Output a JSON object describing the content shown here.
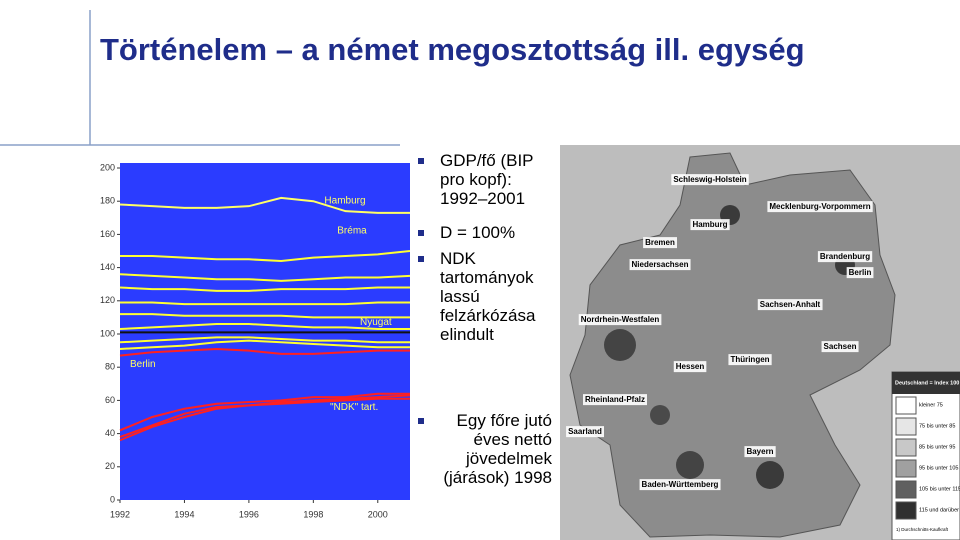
{
  "title": "Történelem – a német megosztottság ill. egység",
  "bullets": [
    "GDP/fő (BIP pro kopf): 1992–2001",
    "D = 100%",
    "NDK tartományok lassú felzárkózása elindult",
    "Egy főre jutó éves nettó jövedelmek (járások) 1998"
  ],
  "chart_data": {
    "type": "line",
    "x": [
      1992,
      1993,
      1994,
      1995,
      1996,
      1997,
      1998,
      1999,
      2000,
      2001
    ],
    "xlim": [
      1992,
      2001
    ],
    "xticks": [
      1992,
      1994,
      1996,
      1998,
      2000
    ],
    "ylim": [
      0,
      200
    ],
    "yticks": [
      0,
      20,
      40,
      60,
      80,
      100,
      120,
      140,
      160,
      180,
      200
    ],
    "series": [
      {
        "name": "Hamburg",
        "color": "#ffff66",
        "values": [
          178,
          177,
          176,
          176,
          177,
          182,
          180,
          174,
          173,
          173
        ]
      },
      {
        "name": "Bréma",
        "color": "#ffff33",
        "values": [
          147,
          147,
          146,
          145,
          145,
          144,
          146,
          147,
          148,
          150
        ]
      },
      {
        "color": "#ffff33",
        "values": [
          136,
          135,
          134,
          133,
          133,
          132,
          133,
          134,
          134,
          135
        ]
      },
      {
        "color": "#ffff33",
        "values": [
          128,
          127,
          127,
          126,
          126,
          127,
          127,
          127,
          128,
          128
        ]
      },
      {
        "color": "#ffff33",
        "values": [
          119,
          119,
          118,
          118,
          118,
          118,
          118,
          118,
          119,
          119
        ]
      },
      {
        "color": "#ffff33",
        "values": [
          112,
          112,
          111,
          111,
          111,
          111,
          110,
          110,
          110,
          110
        ]
      },
      {
        "name": "Nyugat",
        "color": "#111111",
        "values": [
          101,
          101,
          101,
          101,
          101,
          101,
          101,
          101,
          101,
          101
        ]
      },
      {
        "color": "#ffff33",
        "values": [
          103,
          104,
          105,
          106,
          106,
          105,
          104,
          104,
          103,
          103
        ]
      },
      {
        "color": "#ffff33",
        "values": [
          95,
          96,
          97,
          98,
          98,
          97,
          96,
          96,
          95,
          95
        ]
      },
      {
        "color": "#ffff33",
        "values": [
          91,
          92,
          93,
          95,
          96,
          95,
          94,
          93,
          92,
          92
        ]
      },
      {
        "name": "Berlin",
        "color": "#ff2020",
        "values": [
          87,
          89,
          90,
          91,
          90,
          88,
          88,
          89,
          90,
          90
        ]
      },
      {
        "name": "\"NDK\" tart.",
        "color": "#ff2020",
        "values": [
          38,
          45,
          52,
          56,
          57,
          59,
          60,
          61,
          62,
          63
        ]
      },
      {
        "color": "#ff2020",
        "values": [
          42,
          50,
          55,
          58,
          59,
          60,
          62,
          62,
          64,
          64
        ]
      },
      {
        "color": "#ff2020",
        "values": [
          36,
          44,
          50,
          55,
          57,
          58,
          59,
          60,
          61,
          61
        ]
      }
    ]
  },
  "map": {
    "labels": [
      "Schleswig-Holstein",
      "Mecklenburg-Vorpommern",
      "Hamburg",
      "Bremen",
      "Niedersachsen",
      "Brandenburg",
      "Berlin",
      "Sachsen-Anhalt",
      "Nordrhein-Westfalen",
      "Sachsen",
      "Thüringen",
      "Hessen",
      "Rheinland-Pfalz",
      "Saarland",
      "Bayern",
      "Baden-Württemberg"
    ],
    "legend_title": "Deutschland = Index 100",
    "legend": [
      "kleiner 75",
      "75 bis unter 85",
      "85 bis unter 95",
      "95 bis unter 105",
      "105 bis unter 115",
      "115 und darüber"
    ],
    "legend_colors": [
      "#ffffff",
      "#e6e6e6",
      "#c8c8c8",
      "#a0a0a0",
      "#606060",
      "#303030"
    ],
    "footnote": "1) Durchschnitts-Kaufkraft"
  }
}
